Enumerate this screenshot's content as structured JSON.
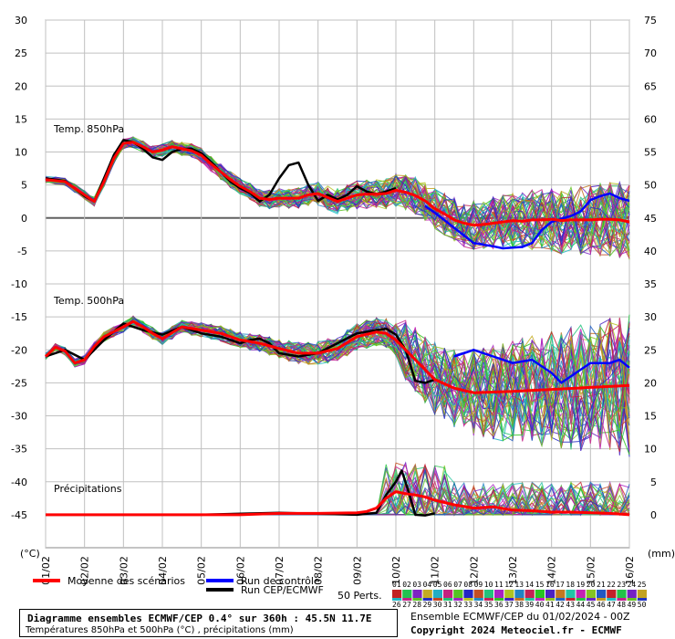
{
  "chart_data": {
    "type": "line",
    "x_labels": [
      "01/02",
      "02/02",
      "03/02",
      "04/02",
      "05/02",
      "06/02",
      "07/02",
      "08/02",
      "09/02",
      "10/02",
      "11/02",
      "12/02",
      "13/02",
      "14/02",
      "15/02",
      "16/02"
    ],
    "y_left_ticks": [
      30,
      25,
      20,
      15,
      10,
      5,
      0,
      -5,
      -10,
      -15,
      -20,
      -25,
      -30,
      -35,
      -40,
      -45
    ],
    "y_right_ticks": [
      75,
      70,
      65,
      60,
      55,
      50,
      45,
      40,
      35,
      30,
      25,
      20,
      15,
      10,
      5,
      0
    ],
    "y_left_unit": "(°C)",
    "y_right_unit": "(mm)",
    "grid": true,
    "panel_labels": {
      "t850": "Temp. 850hPa",
      "t500": "Temp. 500hPa",
      "precip": "Précipitations"
    },
    "series": [
      {
        "name": "Moyenne des scénarios",
        "panel": "t850",
        "values": [
          [
            0,
            5.8
          ],
          [
            0.5,
            5.5
          ],
          [
            1,
            3.5
          ],
          [
            1.25,
            2.5
          ],
          [
            1.5,
            5.5
          ],
          [
            1.75,
            9
          ],
          [
            2,
            11.3
          ],
          [
            2.25,
            11.5
          ],
          [
            2.5,
            10.8
          ],
          [
            2.75,
            10
          ],
          [
            3,
            10.3
          ],
          [
            3.25,
            10.8
          ],
          [
            3.5,
            10.5
          ],
          [
            3.75,
            10.2
          ],
          [
            4,
            9.5
          ],
          [
            4.25,
            8.2
          ],
          [
            4.5,
            7
          ],
          [
            4.75,
            5.8
          ],
          [
            5,
            4.8
          ],
          [
            5.25,
            4
          ],
          [
            5.5,
            3
          ],
          [
            5.75,
            2.8
          ],
          [
            6,
            3
          ],
          [
            6.25,
            3
          ],
          [
            6.5,
            3
          ],
          [
            6.75,
            3.5
          ],
          [
            7,
            3.7
          ],
          [
            7.25,
            3.1
          ],
          [
            7.5,
            2.5
          ],
          [
            7.75,
            3
          ],
          [
            8,
            3.5
          ],
          [
            8.25,
            3.6
          ],
          [
            8.5,
            3.6
          ],
          [
            8.75,
            3.7
          ],
          [
            9,
            4.2
          ],
          [
            9.25,
            3.9
          ],
          [
            9.5,
            3.4
          ],
          [
            9.75,
            2.6
          ],
          [
            10,
            1.4
          ],
          [
            10.25,
            0.6
          ],
          [
            10.5,
            -0.3
          ],
          [
            10.75,
            -0.8
          ],
          [
            11,
            -1.1
          ],
          [
            11.25,
            -1
          ],
          [
            11.5,
            -0.8
          ],
          [
            11.75,
            -0.6
          ],
          [
            12,
            -0.4
          ],
          [
            12.25,
            -0.5
          ],
          [
            12.5,
            -0.3
          ],
          [
            12.75,
            -0.3
          ],
          [
            13,
            -0.2
          ],
          [
            13.25,
            -0.4
          ],
          [
            13.5,
            -0.3
          ],
          [
            13.75,
            -0.3
          ],
          [
            14,
            -0.3
          ],
          [
            14.25,
            -0.2
          ],
          [
            14.5,
            -0.2
          ],
          [
            14.75,
            -0.3
          ],
          [
            15,
            -0.6
          ]
        ]
      },
      {
        "name": "Run de contrôle",
        "panel": "t850",
        "values": [
          [
            9.75,
            1.8
          ],
          [
            10,
            0.8
          ],
          [
            10.5,
            -1.5
          ],
          [
            11,
            -3.8
          ],
          [
            11.5,
            -4.3
          ],
          [
            11.75,
            -4.6
          ],
          [
            12,
            -4.5
          ],
          [
            12.25,
            -4.4
          ],
          [
            12.5,
            -3.8
          ],
          [
            12.75,
            -1.8
          ],
          [
            13,
            -0.6
          ],
          [
            13.5,
            0.3
          ],
          [
            13.75,
            1
          ],
          [
            14,
            2.7
          ],
          [
            14.25,
            3.3
          ],
          [
            14.5,
            3.7
          ],
          [
            14.75,
            3
          ],
          [
            15,
            2.6
          ]
        ]
      },
      {
        "name": "Run CEP/ECMWF",
        "panel": "t850",
        "values": [
          [
            0,
            6
          ],
          [
            0.5,
            5.6
          ],
          [
            1,
            3.3
          ],
          [
            1.25,
            2.5
          ],
          [
            1.5,
            6
          ],
          [
            1.75,
            9.5
          ],
          [
            2,
            11.8
          ],
          [
            2.25,
            11.5
          ],
          [
            2.5,
            10.5
          ],
          [
            2.75,
            9.2
          ],
          [
            3,
            8.8
          ],
          [
            3.25,
            10
          ],
          [
            3.5,
            10.5
          ],
          [
            3.75,
            10.5
          ],
          [
            4,
            9.8
          ],
          [
            4.25,
            8.5
          ],
          [
            4.5,
            7
          ],
          [
            4.75,
            5.5
          ],
          [
            5,
            4.5
          ],
          [
            5.25,
            3.8
          ],
          [
            5.5,
            2.5
          ],
          [
            5.75,
            3.5
          ],
          [
            6,
            6
          ],
          [
            6.25,
            8
          ],
          [
            6.5,
            8.4
          ],
          [
            6.75,
            5
          ],
          [
            7,
            2.6
          ],
          [
            7.25,
            3.5
          ],
          [
            7.5,
            2.8
          ],
          [
            7.75,
            3.5
          ],
          [
            8,
            4.8
          ],
          [
            8.25,
            4
          ],
          [
            8.5,
            3.6
          ],
          [
            8.75,
            4
          ],
          [
            9,
            4.5
          ]
        ]
      },
      {
        "name": "Moyenne des scénarios",
        "panel": "t500",
        "values": [
          [
            0,
            -21
          ],
          [
            0.25,
            -19.6
          ],
          [
            0.5,
            -20.2
          ],
          [
            0.75,
            -22
          ],
          [
            1,
            -21.5
          ],
          [
            1.25,
            -19.5
          ],
          [
            1.5,
            -18
          ],
          [
            2,
            -16.5
          ],
          [
            2.25,
            -15.7
          ],
          [
            2.5,
            -16.5
          ],
          [
            2.75,
            -17.5
          ],
          [
            3,
            -18.3
          ],
          [
            3.5,
            -16.5
          ],
          [
            4,
            -17
          ],
          [
            4.5,
            -17.5
          ],
          [
            5,
            -18.5
          ],
          [
            5.5,
            -19
          ],
          [
            6,
            -19.8
          ],
          [
            6.5,
            -20.5
          ],
          [
            7,
            -20.5
          ],
          [
            7.5,
            -19.8
          ],
          [
            8,
            -18
          ],
          [
            8.5,
            -17.3
          ],
          [
            8.75,
            -17.5
          ],
          [
            9,
            -18.5
          ],
          [
            9.25,
            -20
          ],
          [
            9.5,
            -21.5
          ],
          [
            9.75,
            -23
          ],
          [
            10,
            -24.5
          ],
          [
            10.5,
            -25.8
          ],
          [
            11,
            -26.5
          ],
          [
            12,
            -26.3
          ],
          [
            13,
            -26
          ],
          [
            14,
            -25.7
          ],
          [
            15,
            -25.4
          ]
        ]
      },
      {
        "name": "Run de contrôle",
        "panel": "t500",
        "values": [
          [
            10.5,
            -21
          ],
          [
            11,
            -20
          ],
          [
            11.5,
            -21
          ],
          [
            12,
            -22
          ],
          [
            12.5,
            -21.5
          ],
          [
            13,
            -23.5
          ],
          [
            13.25,
            -25
          ],
          [
            13.5,
            -24
          ],
          [
            14,
            -22
          ],
          [
            14.5,
            -22
          ],
          [
            14.75,
            -21.5
          ],
          [
            15,
            -22.7
          ]
        ]
      },
      {
        "name": "Run CEP/ECMWF",
        "panel": "t500",
        "values": [
          [
            0,
            -21
          ],
          [
            0.5,
            -20
          ],
          [
            1,
            -21.5
          ],
          [
            1.5,
            -18.5
          ],
          [
            2,
            -16
          ],
          [
            2.5,
            -17
          ],
          [
            3,
            -17.7
          ],
          [
            3.5,
            -16.5
          ],
          [
            4,
            -17.5
          ],
          [
            4.5,
            -18
          ],
          [
            5,
            -19
          ],
          [
            5.25,
            -18.5
          ],
          [
            5.5,
            -18.3
          ],
          [
            5.75,
            -19
          ],
          [
            6,
            -20.5
          ],
          [
            6.5,
            -21
          ],
          [
            7,
            -20.5
          ],
          [
            7.5,
            -19
          ],
          [
            8,
            -17.5
          ],
          [
            8.5,
            -17
          ],
          [
            8.75,
            -16.8
          ],
          [
            9,
            -17.7
          ],
          [
            9.25,
            -20
          ],
          [
            9.5,
            -24.7
          ],
          [
            9.75,
            -25
          ],
          [
            10,
            -24.5
          ]
        ]
      },
      {
        "name": "Moyenne des scénarios",
        "panel": "precip",
        "values": [
          [
            0,
            -45
          ],
          [
            1,
            -45
          ],
          [
            2,
            -45
          ],
          [
            3,
            -45
          ],
          [
            4,
            -45
          ],
          [
            5,
            -45
          ],
          [
            6,
            -44.8
          ],
          [
            7,
            -44.8
          ],
          [
            8,
            -44.7
          ],
          [
            8.25,
            -44.5
          ],
          [
            8.5,
            -44
          ],
          [
            8.75,
            -42.5
          ],
          [
            9,
            -41.5
          ],
          [
            9.25,
            -41.8
          ],
          [
            9.5,
            -42
          ],
          [
            9.75,
            -42.3
          ],
          [
            10,
            -42.8
          ],
          [
            10.5,
            -43.5
          ],
          [
            11,
            -44
          ],
          [
            11.5,
            -43.8
          ],
          [
            12,
            -44.3
          ],
          [
            12.5,
            -44.4
          ],
          [
            13,
            -44.6
          ],
          [
            13.5,
            -44.6
          ],
          [
            14,
            -44.7
          ],
          [
            14.5,
            -44.8
          ],
          [
            15,
            -45
          ]
        ]
      },
      {
        "name": "Run CEP/ECMWF",
        "panel": "precip",
        "values": [
          [
            0,
            -45
          ],
          [
            2,
            -45
          ],
          [
            4,
            -45
          ],
          [
            6,
            -44.7
          ],
          [
            8,
            -45
          ],
          [
            8.5,
            -44.7
          ],
          [
            8.75,
            -42
          ],
          [
            9,
            -40
          ],
          [
            9.15,
            -38.3
          ],
          [
            9.3,
            -41
          ],
          [
            9.5,
            -45
          ],
          [
            9.75,
            -45.1
          ],
          [
            10,
            -44.8
          ]
        ]
      }
    ]
  },
  "colors": {
    "mean": "#ff0000",
    "control": "#0000ff",
    "ecmwf": "#000000",
    "grid": "#c0c0c0"
  },
  "legend": {
    "mean_label": "Moyenne des scénarios",
    "control_label": "Run de contrôle",
    "ecmwf_label": "Run CEP/ECMWF",
    "perts_label": "50 Perts.",
    "pert_numbers_row1": [
      "01",
      "02",
      "03",
      "04",
      "05",
      "06",
      "07",
      "08",
      "09",
      "10",
      "11",
      "12",
      "13",
      "14",
      "15",
      "16",
      "17",
      "18",
      "19",
      "20",
      "21",
      "22",
      "23",
      "24",
      "25"
    ],
    "pert_numbers_row2": [
      "26",
      "27",
      "28",
      "29",
      "30",
      "31",
      "32",
      "33",
      "34",
      "35",
      "36",
      "37",
      "38",
      "39",
      "40",
      "41",
      "42",
      "43",
      "44",
      "45",
      "46",
      "47",
      "48",
      "49",
      "50"
    ]
  },
  "footer": {
    "title": "Diagramme ensembles ECMWF/CEP 0.4° sur 360h : 45.5N 11.7E",
    "subtitle": "Températures 850hPa et 500hPa (°C) , précipitations (mm)",
    "run_info": "Ensemble ECMWF/CEP du 01/02/2024 - 00Z",
    "copyright": "Copyright 2024 Meteociel.fr - ECMWF"
  }
}
